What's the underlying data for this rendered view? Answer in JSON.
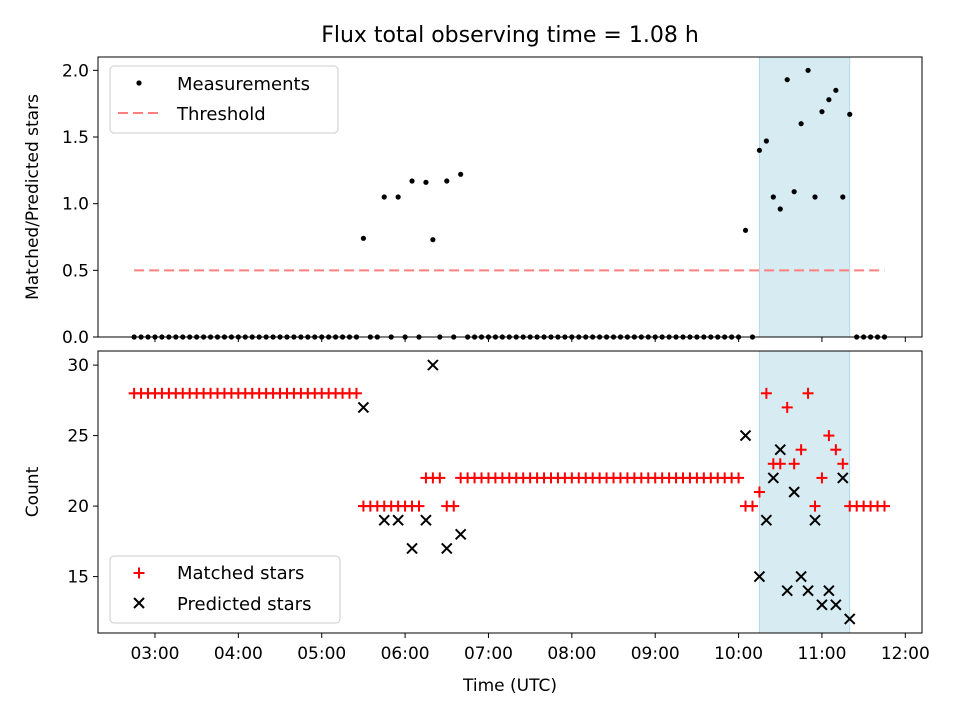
{
  "title": "Flux total observing time = 1.08 h",
  "colors": {
    "measurement": "#000000",
    "threshold": "#ff7f7f",
    "matched": "#ff0000",
    "predicted": "#000000",
    "window_fill": "#add8e6"
  },
  "chart_data": [
    {
      "type": "scatter",
      "ylabel": "Matched/Predicted stars",
      "xlabel": "",
      "xlim": [
        "02:19",
        "12:12"
      ],
      "ylim": [
        0,
        2.1
      ],
      "x_tick_labels": [
        "03:00",
        "04:00",
        "05:00",
        "06:00",
        "07:00",
        "08:00",
        "09:00",
        "10:00",
        "11:00",
        "12:00"
      ],
      "y_tick_labels": [
        "0.0",
        "0.5",
        "1.0",
        "1.5",
        "2.0"
      ],
      "y_ticks": [
        0,
        0.5,
        1.0,
        1.5,
        2.0
      ],
      "legend": {
        "location": "upper-left",
        "entries": [
          "Measurements",
          "Threshold"
        ]
      },
      "highlight_window": [
        "10:15",
        "11:20"
      ],
      "threshold": {
        "value": 0.5,
        "x_range": [
          "02:45",
          "11:45"
        ]
      },
      "series": [
        {
          "name": "Measurements",
          "marker": "dot",
          "points": [
            [
              "02:45",
              0
            ],
            [
              "02:50",
              0
            ],
            [
              "02:55",
              0
            ],
            [
              "03:00",
              0
            ],
            [
              "03:05",
              0
            ],
            [
              "03:10",
              0
            ],
            [
              "03:15",
              0
            ],
            [
              "03:20",
              0
            ],
            [
              "03:25",
              0
            ],
            [
              "03:30",
              0
            ],
            [
              "03:35",
              0
            ],
            [
              "03:40",
              0
            ],
            [
              "03:45",
              0
            ],
            [
              "03:50",
              0
            ],
            [
              "03:55",
              0
            ],
            [
              "04:00",
              0
            ],
            [
              "04:05",
              0
            ],
            [
              "04:10",
              0
            ],
            [
              "04:15",
              0
            ],
            [
              "04:20",
              0
            ],
            [
              "04:25",
              0
            ],
            [
              "04:30",
              0
            ],
            [
              "04:35",
              0
            ],
            [
              "04:40",
              0
            ],
            [
              "04:45",
              0
            ],
            [
              "04:50",
              0
            ],
            [
              "04:55",
              0
            ],
            [
              "05:00",
              0
            ],
            [
              "05:05",
              0
            ],
            [
              "05:10",
              0
            ],
            [
              "05:15",
              0
            ],
            [
              "05:20",
              0
            ],
            [
              "05:25",
              0
            ],
            [
              "05:30",
              0.74
            ],
            [
              "05:35",
              0
            ],
            [
              "05:40",
              0
            ],
            [
              "05:45",
              1.05
            ],
            [
              "05:50",
              0
            ],
            [
              "05:55",
              1.05
            ],
            [
              "06:00",
              0
            ],
            [
              "06:05",
              1.17
            ],
            [
              "06:10",
              0
            ],
            [
              "06:15",
              1.16
            ],
            [
              "06:20",
              0.73
            ],
            [
              "06:25",
              0
            ],
            [
              "06:30",
              1.17
            ],
            [
              "06:35",
              0
            ],
            [
              "06:40",
              1.22
            ],
            [
              "06:45",
              0
            ],
            [
              "06:50",
              0
            ],
            [
              "06:55",
              0
            ],
            [
              "07:00",
              0
            ],
            [
              "07:05",
              0
            ],
            [
              "07:10",
              0
            ],
            [
              "07:15",
              0
            ],
            [
              "07:20",
              0
            ],
            [
              "07:25",
              0
            ],
            [
              "07:30",
              0
            ],
            [
              "07:35",
              0
            ],
            [
              "07:40",
              0
            ],
            [
              "07:45",
              0
            ],
            [
              "07:50",
              0
            ],
            [
              "07:55",
              0
            ],
            [
              "08:00",
              0
            ],
            [
              "08:05",
              0
            ],
            [
              "08:10",
              0
            ],
            [
              "08:15",
              0
            ],
            [
              "08:20",
              0
            ],
            [
              "08:25",
              0
            ],
            [
              "08:30",
              0
            ],
            [
              "08:35",
              0
            ],
            [
              "08:40",
              0
            ],
            [
              "08:45",
              0
            ],
            [
              "08:50",
              0
            ],
            [
              "08:55",
              0
            ],
            [
              "09:00",
              0
            ],
            [
              "09:05",
              0
            ],
            [
              "09:10",
              0
            ],
            [
              "09:15",
              0
            ],
            [
              "09:20",
              0
            ],
            [
              "09:25",
              0
            ],
            [
              "09:30",
              0
            ],
            [
              "09:35",
              0
            ],
            [
              "09:40",
              0
            ],
            [
              "09:45",
              0
            ],
            [
              "09:50",
              0
            ],
            [
              "09:55",
              0
            ],
            [
              "10:00",
              0
            ],
            [
              "10:05",
              0.8
            ],
            [
              "10:10",
              0
            ],
            [
              "10:15",
              1.4
            ],
            [
              "10:20",
              1.47
            ],
            [
              "10:25",
              1.05
            ],
            [
              "10:30",
              0.96
            ],
            [
              "10:35",
              1.93
            ],
            [
              "10:40",
              1.09
            ],
            [
              "10:45",
              1.6
            ],
            [
              "10:50",
              2.0
            ],
            [
              "10:55",
              1.05
            ],
            [
              "11:00",
              1.69
            ],
            [
              "11:05",
              1.78
            ],
            [
              "11:10",
              1.85
            ],
            [
              "11:15",
              1.05
            ],
            [
              "11:20",
              1.67
            ],
            [
              "11:25",
              0
            ],
            [
              "11:30",
              0
            ],
            [
              "11:35",
              0
            ],
            [
              "11:40",
              0
            ],
            [
              "11:45",
              0
            ]
          ]
        }
      ]
    },
    {
      "type": "scatter",
      "ylabel": "Count",
      "xlabel": "Time (UTC)",
      "xlim": [
        "02:19",
        "12:12"
      ],
      "ylim": [
        11,
        31
      ],
      "x_tick_labels": [
        "03:00",
        "04:00",
        "05:00",
        "06:00",
        "07:00",
        "08:00",
        "09:00",
        "10:00",
        "11:00",
        "12:00"
      ],
      "y_tick_labels": [
        "15",
        "20",
        "25",
        "30"
      ],
      "y_ticks": [
        15,
        20,
        25,
        30
      ],
      "legend": {
        "location": "lower-left",
        "entries": [
          "Matched stars",
          "Predicted stars"
        ]
      },
      "highlight_window": [
        "10:15",
        "11:20"
      ],
      "series": [
        {
          "name": "Matched stars",
          "marker": "plus",
          "points": [
            [
              "02:45",
              28
            ],
            [
              "02:50",
              28
            ],
            [
              "02:55",
              28
            ],
            [
              "03:00",
              28
            ],
            [
              "03:05",
              28
            ],
            [
              "03:10",
              28
            ],
            [
              "03:15",
              28
            ],
            [
              "03:20",
              28
            ],
            [
              "03:25",
              28
            ],
            [
              "03:30",
              28
            ],
            [
              "03:35",
              28
            ],
            [
              "03:40",
              28
            ],
            [
              "03:45",
              28
            ],
            [
              "03:50",
              28
            ],
            [
              "03:55",
              28
            ],
            [
              "04:00",
              28
            ],
            [
              "04:05",
              28
            ],
            [
              "04:10",
              28
            ],
            [
              "04:15",
              28
            ],
            [
              "04:20",
              28
            ],
            [
              "04:25",
              28
            ],
            [
              "04:30",
              28
            ],
            [
              "04:35",
              28
            ],
            [
              "04:40",
              28
            ],
            [
              "04:45",
              28
            ],
            [
              "04:50",
              28
            ],
            [
              "04:55",
              28
            ],
            [
              "05:00",
              28
            ],
            [
              "05:05",
              28
            ],
            [
              "05:10",
              28
            ],
            [
              "05:15",
              28
            ],
            [
              "05:20",
              28
            ],
            [
              "05:25",
              28
            ],
            [
              "05:30",
              20
            ],
            [
              "05:35",
              20
            ],
            [
              "05:40",
              20
            ],
            [
              "05:45",
              20
            ],
            [
              "05:50",
              20
            ],
            [
              "05:55",
              20
            ],
            [
              "06:00",
              20
            ],
            [
              "06:05",
              20
            ],
            [
              "06:10",
              20
            ],
            [
              "06:15",
              22
            ],
            [
              "06:20",
              22
            ],
            [
              "06:25",
              22
            ],
            [
              "06:30",
              20
            ],
            [
              "06:35",
              20
            ],
            [
              "06:40",
              22
            ],
            [
              "06:45",
              22
            ],
            [
              "06:50",
              22
            ],
            [
              "06:55",
              22
            ],
            [
              "07:00",
              22
            ],
            [
              "07:05",
              22
            ],
            [
              "07:10",
              22
            ],
            [
              "07:15",
              22
            ],
            [
              "07:20",
              22
            ],
            [
              "07:25",
              22
            ],
            [
              "07:30",
              22
            ],
            [
              "07:35",
              22
            ],
            [
              "07:40",
              22
            ],
            [
              "07:45",
              22
            ],
            [
              "07:50",
              22
            ],
            [
              "07:55",
              22
            ],
            [
              "08:00",
              22
            ],
            [
              "08:05",
              22
            ],
            [
              "08:10",
              22
            ],
            [
              "08:15",
              22
            ],
            [
              "08:20",
              22
            ],
            [
              "08:25",
              22
            ],
            [
              "08:30",
              22
            ],
            [
              "08:35",
              22
            ],
            [
              "08:40",
              22
            ],
            [
              "08:45",
              22
            ],
            [
              "08:50",
              22
            ],
            [
              "08:55",
              22
            ],
            [
              "09:00",
              22
            ],
            [
              "09:05",
              22
            ],
            [
              "09:10",
              22
            ],
            [
              "09:15",
              22
            ],
            [
              "09:20",
              22
            ],
            [
              "09:25",
              22
            ],
            [
              "09:30",
              22
            ],
            [
              "09:35",
              22
            ],
            [
              "09:40",
              22
            ],
            [
              "09:45",
              22
            ],
            [
              "09:50",
              22
            ],
            [
              "09:55",
              22
            ],
            [
              "10:00",
              22
            ],
            [
              "10:05",
              20
            ],
            [
              "10:10",
              20
            ],
            [
              "10:15",
              21
            ],
            [
              "10:20",
              28
            ],
            [
              "10:25",
              23
            ],
            [
              "10:30",
              23
            ],
            [
              "10:35",
              27
            ],
            [
              "10:40",
              23
            ],
            [
              "10:45",
              24
            ],
            [
              "10:50",
              28
            ],
            [
              "10:55",
              20
            ],
            [
              "11:00",
              22
            ],
            [
              "11:05",
              25
            ],
            [
              "11:10",
              24
            ],
            [
              "11:15",
              23
            ],
            [
              "11:20",
              20
            ],
            [
              "11:25",
              20
            ],
            [
              "11:30",
              20
            ],
            [
              "11:35",
              20
            ],
            [
              "11:40",
              20
            ],
            [
              "11:45",
              20
            ]
          ]
        },
        {
          "name": "Predicted stars",
          "marker": "x",
          "points": [
            [
              "05:30",
              27
            ],
            [
              "05:45",
              19
            ],
            [
              "05:55",
              19
            ],
            [
              "06:05",
              17
            ],
            [
              "06:15",
              19
            ],
            [
              "06:20",
              30
            ],
            [
              "06:30",
              17
            ],
            [
              "06:40",
              18
            ],
            [
              "10:05",
              25
            ],
            [
              "10:15",
              15
            ],
            [
              "10:20",
              19
            ],
            [
              "10:25",
              22
            ],
            [
              "10:30",
              24
            ],
            [
              "10:35",
              14
            ],
            [
              "10:40",
              21
            ],
            [
              "10:45",
              15
            ],
            [
              "10:50",
              14
            ],
            [
              "10:55",
              19
            ],
            [
              "11:00",
              13
            ],
            [
              "11:05",
              14
            ],
            [
              "11:10",
              13
            ],
            [
              "11:15",
              22
            ],
            [
              "11:20",
              12
            ]
          ]
        }
      ]
    }
  ]
}
